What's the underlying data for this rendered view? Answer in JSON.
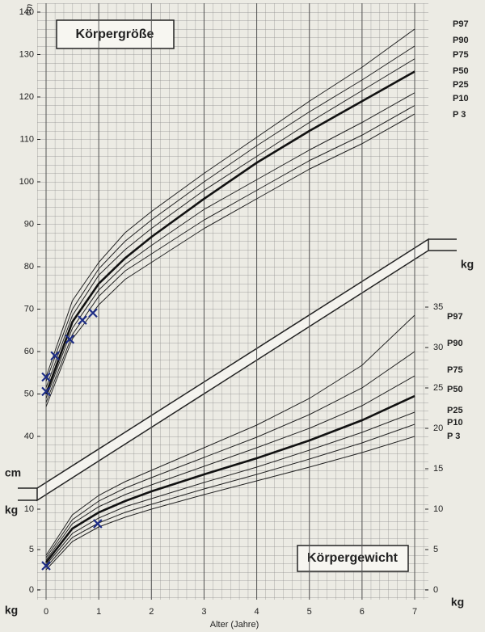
{
  "chart_data": [
    {
      "type": "line",
      "title": "Körpergröße",
      "y_label": "cm",
      "x": [
        0,
        0.5,
        1,
        1.5,
        2,
        3,
        4,
        5,
        6,
        7
      ],
      "xlim": [
        0,
        7
      ],
      "ylim": [
        40,
        140
      ],
      "yticks": [
        40,
        50,
        60,
        70,
        80,
        90,
        100,
        110,
        120,
        130,
        140
      ],
      "series": [
        {
          "name": "P97",
          "color": "#222222",
          "values": [
            54,
            72,
            81,
            88,
            93,
            102,
            110.5,
            119,
            127,
            136
          ]
        },
        {
          "name": "P90",
          "color": "#222222",
          "values": [
            53,
            70,
            79.5,
            86,
            91,
            100,
            108.5,
            116.5,
            124,
            132
          ]
        },
        {
          "name": "P75",
          "color": "#222222",
          "values": [
            51.5,
            68.5,
            78,
            84,
            89,
            98,
            106,
            114,
            121.5,
            129
          ]
        },
        {
          "name": "P50",
          "color": "#111111",
          "values": [
            50,
            67,
            76,
            82,
            87,
            96,
            104.5,
            112,
            119,
            126
          ]
        },
        {
          "name": "P25",
          "color": "#222222",
          "values": [
            49,
            65.5,
            74.5,
            80.5,
            85,
            93.5,
            100.5,
            107.5,
            114,
            121
          ]
        },
        {
          "name": "P10",
          "color": "#222222",
          "values": [
            48,
            64,
            73,
            79,
            83,
            91,
            98,
            105,
            111,
            118
          ]
        },
        {
          "name": "P 3",
          "color": "#222222",
          "values": [
            47,
            63,
            71,
            77,
            81,
            89,
            96,
            103,
            109,
            116
          ]
        }
      ],
      "points": {
        "color": "#1c2c85",
        "x": [
          0,
          0,
          0.17,
          0.45,
          0.69,
          0.89
        ],
        "y": [
          50.6,
          54,
          59,
          62.9,
          67.4,
          69.1
        ]
      }
    },
    {
      "type": "line",
      "title": "Körpergewicht",
      "y_label": "kg",
      "x_label": "Alter (Jahre)",
      "x": [
        0,
        0.5,
        1,
        1.5,
        2,
        3,
        4,
        5,
        6,
        7
      ],
      "xlim": [
        0,
        7
      ],
      "xticks": [
        0,
        1,
        2,
        3,
        4,
        5,
        6,
        7
      ],
      "ylim": [
        0,
        35
      ],
      "yticks": [
        0,
        5,
        10
      ],
      "y2lim": [
        0,
        35
      ],
      "y2ticks": [
        0,
        5,
        10,
        15,
        20,
        25,
        30,
        35
      ],
      "series": [
        {
          "name": "P97",
          "color": "#222222",
          "values": [
            4.3,
            9.3,
            11.7,
            13.4,
            14.8,
            17.6,
            20.4,
            23.7,
            27.8,
            34
          ]
        },
        {
          "name": "P90",
          "color": "#222222",
          "values": [
            4,
            8.7,
            11,
            12.6,
            13.9,
            16.4,
            18.9,
            21.7,
            25,
            29.5
          ]
        },
        {
          "name": "P75",
          "color": "#222222",
          "values": [
            3.7,
            8.2,
            10.3,
            11.8,
            13,
            15.3,
            17.6,
            20,
            22.8,
            26.5
          ]
        },
        {
          "name": "P50",
          "color": "#111111",
          "values": [
            3.4,
            7.6,
            9.6,
            11,
            12.2,
            14.3,
            16.3,
            18.5,
            21,
            24
          ]
        },
        {
          "name": "P25",
          "color": "#222222",
          "values": [
            3.1,
            7,
            8.9,
            10.3,
            11.3,
            13.3,
            15.2,
            17.3,
            19.5,
            22
          ]
        },
        {
          "name": "P10",
          "color": "#222222",
          "values": [
            2.8,
            6.5,
            8.3,
            9.6,
            10.6,
            12.5,
            14.3,
            16.2,
            18.2,
            20.5
          ]
        },
        {
          "name": "P 3",
          "color": "#222222",
          "values": [
            2.5,
            6,
            7.8,
            9,
            10,
            11.8,
            13.5,
            15.2,
            17,
            19
          ]
        }
      ],
      "points": {
        "color": "#1c2c85",
        "x": [
          0,
          0.98
        ],
        "y": [
          3,
          8.2
        ]
      }
    }
  ]
}
